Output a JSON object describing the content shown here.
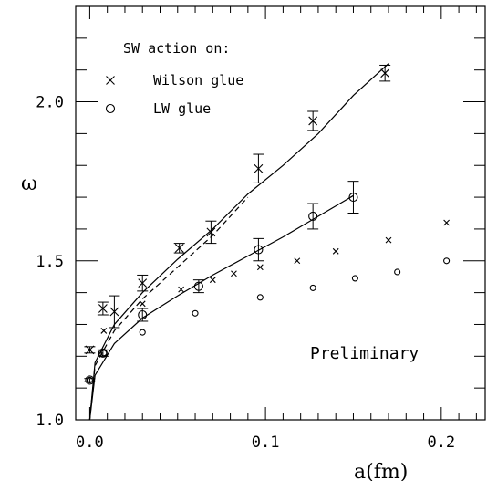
{
  "chart_data": {
    "type": "scatter",
    "title": "",
    "xlabel": "a(fm)",
    "ylabel": "ω",
    "xlim": [
      -0.008,
      0.225
    ],
    "ylim": [
      1.0,
      2.3
    ],
    "x_ticks": [
      "0.0",
      "0.1",
      "0.2"
    ],
    "y_ticks": [
      "1.0",
      "1.5",
      "2.0"
    ],
    "grid": false,
    "legend": {
      "title": "SW action on:",
      "entries": [
        {
          "marker": "×",
          "label": "Wilson glue"
        },
        {
          "marker": "○",
          "label": "LW glue"
        }
      ],
      "position": "top-left"
    },
    "annotation": "Preliminary",
    "series": [
      {
        "name": "Wilson glue",
        "marker": "x-large",
        "error_bars": true,
        "x": [
          0.0,
          0.0075,
          0.014,
          0.03,
          0.051,
          0.069,
          0.096,
          0.127,
          0.168
        ],
        "y": [
          1.22,
          1.35,
          1.34,
          1.43,
          1.54,
          1.59,
          1.79,
          1.94,
          2.09
        ],
        "yerr": [
          0.01,
          0.02,
          0.05,
          0.025,
          0.015,
          0.035,
          0.045,
          0.03,
          0.025
        ]
      },
      {
        "name": "LW glue",
        "marker": "circle-large",
        "error_bars": true,
        "x": [
          0.0,
          0.0075,
          0.03,
          0.062,
          0.096,
          0.127,
          0.15
        ],
        "y": [
          1.125,
          1.21,
          1.33,
          1.42,
          1.535,
          1.64,
          1.7
        ],
        "yerr": [
          0.005,
          0.01,
          0.02,
          0.02,
          0.035,
          0.04,
          0.05
        ]
      },
      {
        "name": "",
        "marker": "x-small",
        "error_bars": false,
        "x": [
          0.008,
          0.03,
          0.052,
          0.07,
          0.082,
          0.097,
          0.118,
          0.14,
          0.17,
          0.203
        ],
        "y": [
          1.28,
          1.365,
          1.41,
          1.44,
          1.46,
          1.48,
          1.5,
          1.53,
          1.565,
          1.62
        ]
      },
      {
        "name": "",
        "marker": "circle-small",
        "error_bars": false,
        "x": [
          0.0,
          0.008,
          0.03,
          0.06,
          0.097,
          0.127,
          0.151,
          0.175,
          0.203
        ],
        "y": [
          1.125,
          1.21,
          1.275,
          1.335,
          1.385,
          1.415,
          1.445,
          1.465,
          1.5
        ]
      }
    ],
    "fit_curves": [
      {
        "style": "solid",
        "x": [
          0.0,
          0.003,
          0.014,
          0.03,
          0.05,
          0.07,
          0.09,
          0.11,
          0.13,
          0.15,
          0.17
        ],
        "y": [
          1.0,
          1.18,
          1.3,
          1.4,
          1.505,
          1.6,
          1.71,
          1.8,
          1.9,
          2.02,
          2.12
        ]
      },
      {
        "style": "dashed",
        "x": [
          0.0,
          0.003,
          0.014,
          0.03,
          0.05,
          0.07,
          0.09
        ],
        "y": [
          1.0,
          1.17,
          1.28,
          1.38,
          1.48,
          1.58,
          1.7
        ]
      },
      {
        "style": "solid",
        "x": [
          0.0,
          0.003,
          0.014,
          0.03,
          0.05,
          0.07,
          0.09,
          0.11,
          0.13,
          0.15
        ],
        "y": [
          1.0,
          1.14,
          1.24,
          1.32,
          1.39,
          1.455,
          1.515,
          1.575,
          1.64,
          1.705
        ]
      }
    ]
  }
}
